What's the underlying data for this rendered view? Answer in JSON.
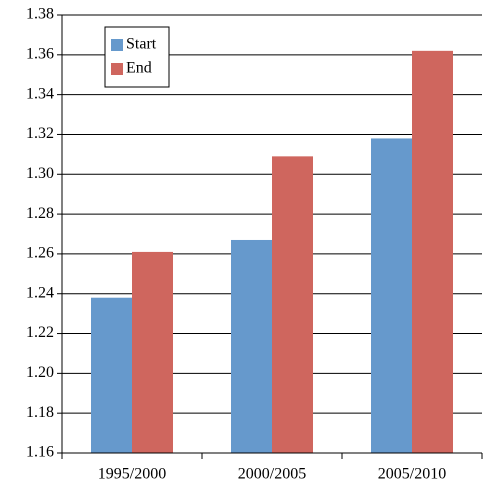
{
  "chart_data": {
    "type": "bar",
    "categories": [
      "1995/2000",
      "2000/2005",
      "2005/2010"
    ],
    "series": [
      {
        "name": "Start",
        "color": "#6699cc",
        "values": [
          1.238,
          1.267,
          1.318
        ]
      },
      {
        "name": "End",
        "color": "#cf665e",
        "values": [
          1.261,
          1.309,
          1.362
        ]
      }
    ],
    "ylim": [
      1.16,
      1.38
    ],
    "yticks": [
      1.16,
      1.18,
      {
        "value": 1.2,
        "label": "1.20"
      },
      1.22,
      1.24,
      1.26,
      1.28,
      {
        "value": 1.3,
        "label": "1.30"
      },
      1.32,
      1.34,
      1.36,
      1.38
    ],
    "grid": true,
    "legend": "upper left"
  }
}
